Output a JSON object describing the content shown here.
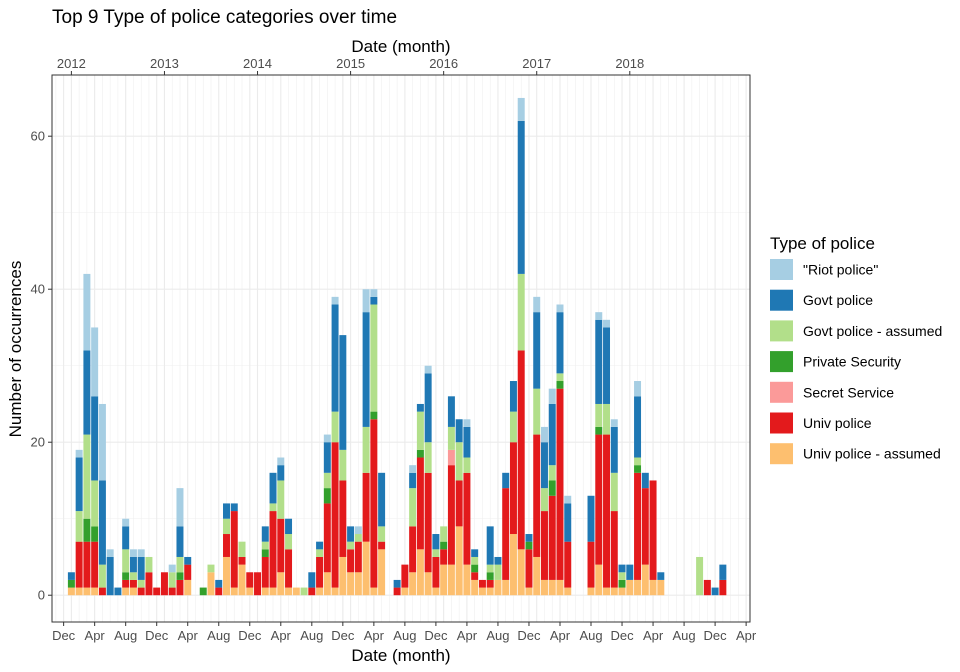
{
  "chart_data": {
    "type": "bar",
    "stacked": true,
    "title": "Top 9  Type of police categories over time",
    "xlabel": "Date (month)",
    "xlabel_top": "Date (month)",
    "ylabel": "Number of occurrences",
    "ylim": [
      -3.5,
      68
    ],
    "y_ticks": [
      0,
      20,
      40,
      60
    ],
    "x_start": "2011-11",
    "x_end": "2019-04",
    "bottom_ticks": [
      {
        "month": "2011-12",
        "label": "Dec"
      },
      {
        "month": "2012-04",
        "label": "Apr"
      },
      {
        "month": "2012-08",
        "label": "Aug"
      },
      {
        "month": "2012-12",
        "label": "Dec"
      },
      {
        "month": "2013-04",
        "label": "Apr"
      },
      {
        "month": "2013-08",
        "label": "Aug"
      },
      {
        "month": "2013-12",
        "label": "Dec"
      },
      {
        "month": "2014-04",
        "label": "Apr"
      },
      {
        "month": "2014-08",
        "label": "Aug"
      },
      {
        "month": "2014-12",
        "label": "Dec"
      },
      {
        "month": "2015-04",
        "label": "Apr"
      },
      {
        "month": "2015-08",
        "label": "Aug"
      },
      {
        "month": "2015-12",
        "label": "Dec"
      },
      {
        "month": "2016-04",
        "label": "Apr"
      },
      {
        "month": "2016-08",
        "label": "Aug"
      },
      {
        "month": "2016-12",
        "label": "Dec"
      },
      {
        "month": "2017-04",
        "label": "Apr"
      },
      {
        "month": "2017-08",
        "label": "Aug"
      },
      {
        "month": "2017-12",
        "label": "Dec"
      },
      {
        "month": "2018-04",
        "label": "Apr"
      },
      {
        "month": "2018-08",
        "label": "Aug"
      },
      {
        "month": "2018-12",
        "label": "Dec"
      },
      {
        "month": "2019-04",
        "label": "Apr"
      }
    ],
    "top_ticks": [
      {
        "month": "2012-01",
        "label": "2012"
      },
      {
        "month": "2013-01",
        "label": "2013"
      },
      {
        "month": "2014-01",
        "label": "2014"
      },
      {
        "month": "2015-01",
        "label": "2015"
      },
      {
        "month": "2016-01",
        "label": "2016"
      },
      {
        "month": "2017-01",
        "label": "2017"
      },
      {
        "month": "2018-01",
        "label": "2018"
      }
    ],
    "legend": {
      "title": "Type of police",
      "position": "right",
      "entries": [
        {
          "key": "riot",
          "name": "\"Riot police\"",
          "color": "#A6CEE3"
        },
        {
          "key": "govt",
          "name": "Govt police",
          "color": "#1F78B4"
        },
        {
          "key": "govt_assumed",
          "name": "Govt police - assumed",
          "color": "#B2DF8A"
        },
        {
          "key": "private",
          "name": "Private Security",
          "color": "#33A02C"
        },
        {
          "key": "secret",
          "name": "Secret Service",
          "color": "#FB9A99"
        },
        {
          "key": "univ",
          "name": "Univ police",
          "color": "#E31A1C"
        },
        {
          "key": "univ_assumed",
          "name": "Univ police - assumed",
          "color": "#FDBF6F"
        }
      ]
    },
    "stack_order": [
      "univ_assumed",
      "univ",
      "secret",
      "private",
      "govt_assumed",
      "govt",
      "riot"
    ],
    "bars": [
      {
        "month": "2012-01",
        "univ_assumed": 1,
        "private": 1,
        "govt": 1
      },
      {
        "month": "2012-02",
        "univ_assumed": 1,
        "univ": 6,
        "govt_assumed": 4,
        "govt": 7,
        "riot": 1
      },
      {
        "month": "2012-03",
        "univ_assumed": 1,
        "univ": 6,
        "private": 3,
        "govt_assumed": 11,
        "govt": 11,
        "riot": 10
      },
      {
        "month": "2012-04",
        "univ_assumed": 1,
        "univ": 6,
        "private": 2,
        "govt_assumed": 6,
        "govt": 11,
        "riot": 9
      },
      {
        "month": "2012-05",
        "univ": 1,
        "govt_assumed": 3,
        "govt": 11,
        "riot": 10
      },
      {
        "month": "2012-06",
        "govt": 5,
        "riot": 1
      },
      {
        "month": "2012-07",
        "govt": 1
      },
      {
        "month": "2012-08",
        "univ_assumed": 1,
        "univ": 1,
        "private": 1,
        "govt_assumed": 3,
        "govt": 3,
        "riot": 1
      },
      {
        "month": "2012-09",
        "univ_assumed": 1,
        "univ": 1,
        "govt_assumed": 1,
        "govt": 2,
        "riot": 1
      },
      {
        "month": "2012-10",
        "univ": 1,
        "govt_assumed": 1,
        "govt": 3,
        "riot": 1
      },
      {
        "month": "2012-11",
        "univ": 3,
        "govt_assumed": 2
      },
      {
        "month": "2012-12",
        "univ": 1
      },
      {
        "month": "2013-01",
        "univ": 3
      },
      {
        "month": "2013-02",
        "univ": 1,
        "govt_assumed": 2,
        "riot": 1
      },
      {
        "month": "2013-03",
        "univ": 2,
        "private": 1,
        "govt_assumed": 2,
        "govt": 4,
        "riot": 5
      },
      {
        "month": "2013-04",
        "univ_assumed": 2,
        "univ": 2,
        "govt": 1
      },
      {
        "month": "2013-06",
        "private": 1
      },
      {
        "month": "2013-07",
        "univ_assumed": 3,
        "govt_assumed": 1
      },
      {
        "month": "2013-08",
        "univ": 1,
        "govt": 1
      },
      {
        "month": "2013-09",
        "univ_assumed": 5,
        "univ": 3,
        "govt_assumed": 2,
        "govt": 2
      },
      {
        "month": "2013-10",
        "univ_assumed": 1,
        "univ": 10,
        "govt": 1
      },
      {
        "month": "2013-11",
        "univ_assumed": 4,
        "univ": 1,
        "govt_assumed": 2
      },
      {
        "month": "2013-12",
        "univ_assumed": 1,
        "univ": 2
      },
      {
        "month": "2014-01",
        "univ": 3
      },
      {
        "month": "2014-02",
        "univ_assumed": 1,
        "univ": 4,
        "private": 1,
        "govt_assumed": 1,
        "govt": 2
      },
      {
        "month": "2014-03",
        "univ_assumed": 1,
        "univ": 10,
        "govt_assumed": 1,
        "govt": 4
      },
      {
        "month": "2014-04",
        "univ_assumed": 3,
        "univ": 7,
        "govt_assumed": 5,
        "govt": 2,
        "riot": 1
      },
      {
        "month": "2014-05",
        "univ_assumed": 1,
        "univ": 5,
        "govt_assumed": 2,
        "govt": 2
      },
      {
        "month": "2014-06",
        "univ_assumed": 1
      },
      {
        "month": "2014-07",
        "govt_assumed": 1
      },
      {
        "month": "2014-08",
        "univ": 1,
        "govt": 2
      },
      {
        "month": "2014-09",
        "univ_assumed": 1,
        "univ": 4,
        "govt_assumed": 1,
        "govt": 1
      },
      {
        "month": "2014-10",
        "univ_assumed": 3,
        "univ": 9,
        "private": 2,
        "govt_assumed": 2,
        "govt": 4,
        "riot": 1
      },
      {
        "month": "2014-11",
        "univ_assumed": 1,
        "univ": 19,
        "govt_assumed": 4,
        "govt": 14,
        "riot": 1
      },
      {
        "month": "2014-12",
        "univ_assumed": 5,
        "univ": 10,
        "govt_assumed": 4,
        "govt": 15
      },
      {
        "month": "2015-01",
        "univ_assumed": 3,
        "univ": 3,
        "govt_assumed": 1,
        "govt": 2
      },
      {
        "month": "2015-02",
        "univ_assumed": 3,
        "univ": 4,
        "govt_assumed": 1,
        "riot": 1
      },
      {
        "month": "2015-03",
        "univ_assumed": 7,
        "univ": 9,
        "govt_assumed": 6,
        "govt": 15,
        "riot": 3
      },
      {
        "month": "2015-04",
        "univ_assumed": 1,
        "univ": 22,
        "private": 1,
        "govt_assumed": 14,
        "govt": 1,
        "riot": 1
      },
      {
        "month": "2015-05",
        "univ_assumed": 6,
        "univ": 1,
        "govt_assumed": 2,
        "govt": 7
      },
      {
        "month": "2015-07",
        "univ": 1,
        "govt": 1
      },
      {
        "month": "2015-08",
        "univ_assumed": 1,
        "univ": 3
      },
      {
        "month": "2015-09",
        "univ_assumed": 3,
        "univ": 6,
        "govt_assumed": 5,
        "govt": 2,
        "riot": 1
      },
      {
        "month": "2015-10",
        "univ_assumed": 6,
        "univ": 12,
        "private": 1,
        "govt_assumed": 5,
        "govt": 1
      },
      {
        "month": "2015-11",
        "univ_assumed": 3,
        "univ": 13,
        "govt_assumed": 4,
        "govt": 9,
        "riot": 1
      },
      {
        "month": "2015-12",
        "univ_assumed": 1,
        "univ": 4,
        "govt_assumed": 1,
        "govt": 2
      },
      {
        "month": "2016-01",
        "univ_assumed": 4,
        "univ": 2,
        "private": 1,
        "govt_assumed": 2
      },
      {
        "month": "2016-02",
        "univ_assumed": 4,
        "univ": 13,
        "secret": 2,
        "govt_assumed": 3,
        "govt": 4
      },
      {
        "month": "2016-03",
        "univ_assumed": 9,
        "univ": 6,
        "govt_assumed": 5,
        "govt": 3
      },
      {
        "month": "2016-04",
        "univ_assumed": 4,
        "univ": 12,
        "govt_assumed": 2,
        "govt": 4,
        "riot": 1
      },
      {
        "month": "2016-05",
        "univ_assumed": 2,
        "univ": 1,
        "private": 1,
        "govt_assumed": 1,
        "govt": 1
      },
      {
        "month": "2016-06",
        "univ_assumed": 1,
        "univ": 1
      },
      {
        "month": "2016-07",
        "univ_assumed": 1,
        "univ": 1,
        "private": 1,
        "govt_assumed": 1,
        "govt": 5
      },
      {
        "month": "2016-08",
        "univ_assumed": 2,
        "govt_assumed": 2,
        "govt": 1
      },
      {
        "month": "2016-09",
        "univ_assumed": 2,
        "univ": 12,
        "govt": 2
      },
      {
        "month": "2016-10",
        "univ_assumed": 8,
        "univ": 12,
        "govt_assumed": 4,
        "govt": 4
      },
      {
        "month": "2016-11",
        "univ_assumed": 6,
        "univ": 26,
        "govt_assumed": 10,
        "govt": 20,
        "riot": 3
      },
      {
        "month": "2016-12",
        "univ_assumed": 1,
        "univ": 5,
        "private": 1,
        "govt": 1
      },
      {
        "month": "2017-01",
        "univ_assumed": 5,
        "univ": 16,
        "govt_assumed": 6,
        "govt": 10,
        "riot": 2
      },
      {
        "month": "2017-02",
        "univ_assumed": 2,
        "univ": 9,
        "govt_assumed": 3,
        "govt": 6,
        "riot": 2
      },
      {
        "month": "2017-03",
        "univ_assumed": 2,
        "univ": 11,
        "private": 2,
        "govt_assumed": 2,
        "govt": 8,
        "riot": 2
      },
      {
        "month": "2017-04",
        "univ_assumed": 2,
        "univ": 25,
        "private": 1,
        "govt_assumed": 1,
        "govt": 8,
        "riot": 1
      },
      {
        "month": "2017-05",
        "univ_assumed": 1,
        "univ": 6,
        "govt": 5,
        "riot": 1
      },
      {
        "month": "2017-08",
        "univ_assumed": 1,
        "univ": 6,
        "govt": 6
      },
      {
        "month": "2017-09",
        "univ_assumed": 4,
        "univ": 17,
        "private": 1,
        "govt_assumed": 3,
        "govt": 11,
        "riot": 1
      },
      {
        "month": "2017-10",
        "univ_assumed": 1,
        "univ": 20,
        "govt_assumed": 4,
        "govt": 10,
        "riot": 1
      },
      {
        "month": "2017-11",
        "univ_assumed": 1,
        "univ": 10,
        "govt_assumed": 5,
        "govt": 6,
        "riot": 1
      },
      {
        "month": "2017-12",
        "univ_assumed": 1,
        "private": 1,
        "govt_assumed": 1,
        "govt": 1
      },
      {
        "month": "2018-01",
        "univ_assumed": 2,
        "govt": 2
      },
      {
        "month": "2018-02",
        "univ_assumed": 2,
        "univ": 14,
        "private": 1,
        "govt_assumed": 1,
        "govt": 8,
        "riot": 2
      },
      {
        "month": "2018-03",
        "univ_assumed": 4,
        "univ": 10,
        "govt": 2
      },
      {
        "month": "2018-04",
        "univ_assumed": 2,
        "univ": 13
      },
      {
        "month": "2018-05",
        "univ_assumed": 2,
        "govt": 1
      },
      {
        "month": "2018-10",
        "govt_assumed": 5
      },
      {
        "month": "2018-11",
        "univ": 2
      },
      {
        "month": "2018-12",
        "govt": 1
      },
      {
        "month": "2019-01",
        "univ": 2,
        "govt": 2
      }
    ]
  }
}
